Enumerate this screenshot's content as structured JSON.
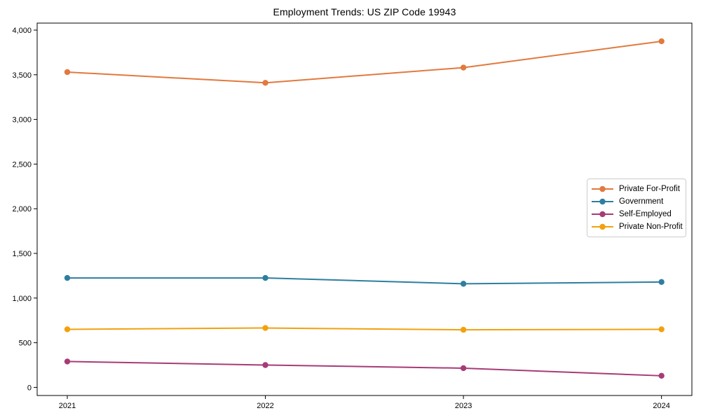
{
  "chart_data": {
    "type": "line",
    "title": "Employment Trends: US ZIP Code 19943",
    "categories": [
      "2021",
      "2022",
      "2023",
      "2024"
    ],
    "series": [
      {
        "name": "Private For-Profit",
        "color": "#E2793E",
        "values": [
          3530,
          3410,
          3580,
          3875
        ]
      },
      {
        "name": "Government",
        "color": "#2E7EA0",
        "values": [
          1225,
          1225,
          1160,
          1180
        ]
      },
      {
        "name": "Self-Employed",
        "color": "#A63C77",
        "values": [
          290,
          250,
          215,
          130
        ]
      },
      {
        "name": "Private Non-Profit",
        "color": "#F2A10E",
        "values": [
          650,
          665,
          645,
          650
        ]
      }
    ],
    "xlabel": "",
    "ylabel": "",
    "ylim": [
      0,
      4000
    ],
    "yticks": [
      0,
      500,
      1000,
      1500,
      2000,
      2500,
      3000,
      3500,
      4000
    ],
    "ytick_labels": [
      "0",
      "500",
      "1,000",
      "1,500",
      "2,000",
      "2,500",
      "3,000",
      "3,500",
      "4,000"
    ],
    "grid": false,
    "legend_position": "center-right",
    "axis_color": "#000000",
    "marker": "circle",
    "line_width": 2,
    "marker_radius": 4.2
  }
}
